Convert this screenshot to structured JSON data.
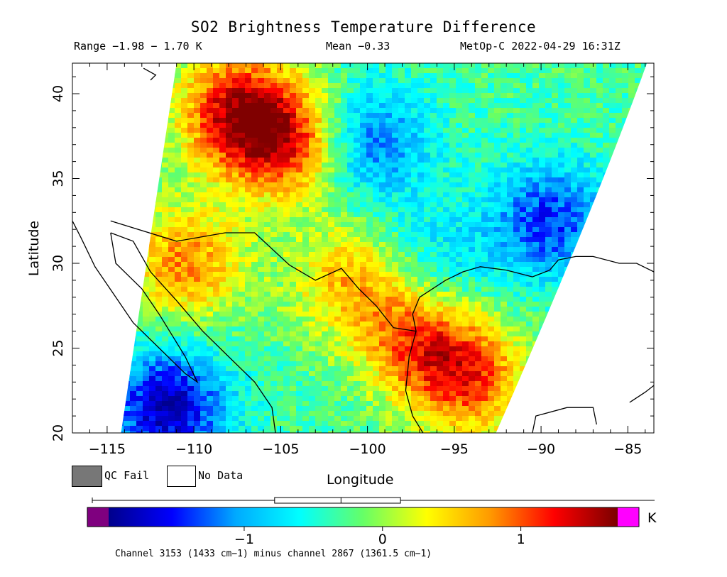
{
  "chart_data": {
    "type": "heatmap",
    "title": "SO2 Brightness Temperature Difference",
    "range_text": "Range −1.98 − 1.70 K",
    "mean_text": "Mean −0.33",
    "satellite_text": "MetOp-C 2022-04-29 16:31Z",
    "xlabel": "Longitude",
    "ylabel": "Latitude",
    "xlim": [
      -117,
      -83.5
    ],
    "ylim": [
      20,
      41.8
    ],
    "xticks": [
      -115,
      -110,
      -105,
      -100,
      -95,
      -90,
      -85
    ],
    "xtick_labels": [
      "−115",
      "−110",
      "−105",
      "−100",
      "−95",
      "−90",
      "−85"
    ],
    "yticks": [
      20,
      25,
      30,
      35,
      40
    ],
    "ytick_labels": [
      "20",
      "25",
      "30",
      "35",
      "40"
    ],
    "colorbar": {
      "min": -1.98,
      "max": 1.7,
      "unit": "K",
      "ticks": [
        -1,
        0,
        1
      ],
      "tick_labels": [
        "−1",
        "0",
        "1"
      ],
      "colors": [
        "#00008b",
        "#0000ff",
        "#00aaff",
        "#00ffff",
        "#66ff66",
        "#ffff00",
        "#ff9900",
        "#ff0000",
        "#7a0000"
      ],
      "low_color": "#7f007f",
      "high_color": "#ff00ff",
      "boxplot": {
        "whisker_low": -1.98,
        "q1": -0.78,
        "median": -0.3,
        "q3": 0.13,
        "whisker_high": 1.7
      }
    },
    "swath_corners": {
      "bottom_left_lon": -114.2,
      "bottom_right_lon": -92.6,
      "top_left_lon": -111.0,
      "top_right_lon": -83.9
    },
    "hotspots": [
      {
        "lon": -107.5,
        "lat": 39.0,
        "value": 1.3
      },
      {
        "lon": -104.5,
        "lat": 37.0,
        "value": 1.1
      },
      {
        "lon": -110.5,
        "lat": 30.0,
        "value": 0.8
      },
      {
        "lon": -101.0,
        "lat": 29.0,
        "value": 0.6
      },
      {
        "lon": -97.0,
        "lat": 25.5,
        "value": 0.9
      },
      {
        "lon": -94.0,
        "lat": 23.0,
        "value": 0.9
      },
      {
        "lon": -100.0,
        "lat": 37.0,
        "value": -1.3
      },
      {
        "lon": -89.5,
        "lat": 32.5,
        "value": -1.4
      },
      {
        "lon": -111.5,
        "lat": 21.5,
        "value": -1.8
      },
      {
        "lon": -96.0,
        "lat": 30.0,
        "value": -0.8
      }
    ]
  },
  "legend": {
    "qc_fail": "QC Fail",
    "no_data": "No Data",
    "qc_color": "#777777"
  },
  "footnote": "Channel 3153 (1433 cm−1) minus channel 2867 (1361.5 cm−1)"
}
